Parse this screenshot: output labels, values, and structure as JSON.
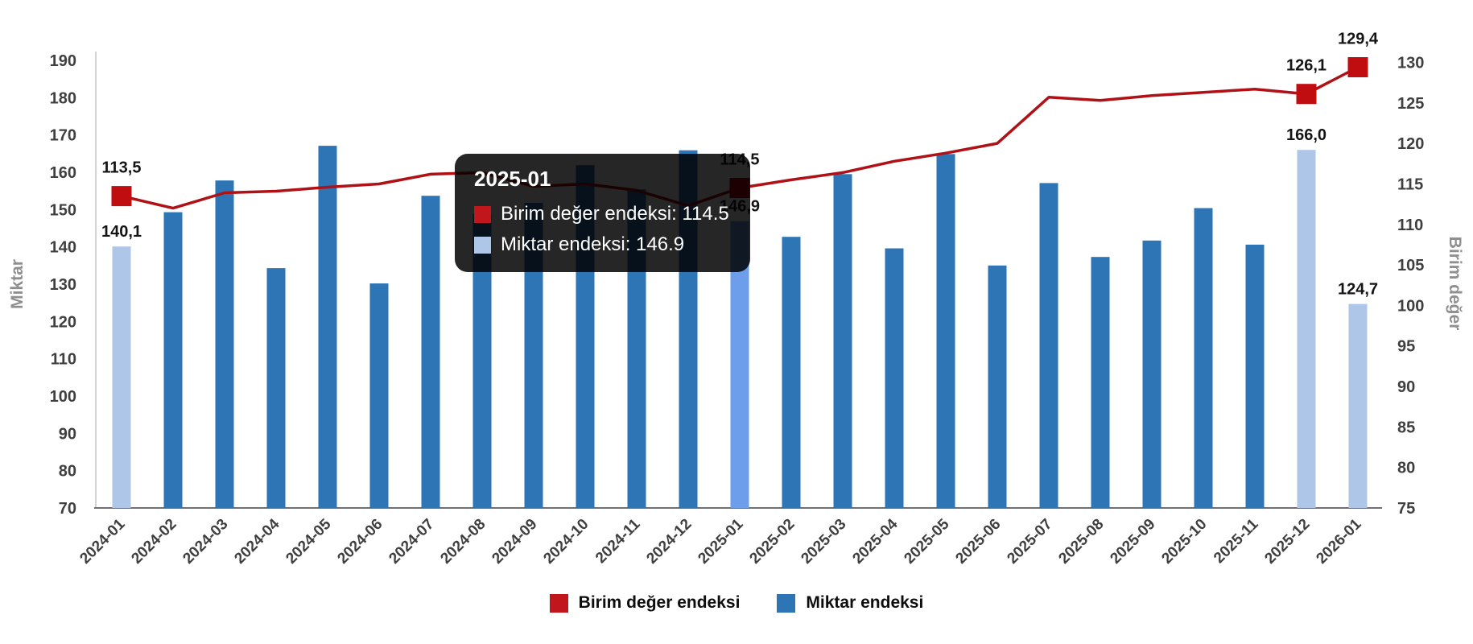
{
  "chart_data": {
    "type": "combo",
    "categories": [
      "2024-01",
      "2024-02",
      "2024-03",
      "2024-04",
      "2024-05",
      "2024-06",
      "2024-07",
      "2024-08",
      "2024-09",
      "2024-10",
      "2024-11",
      "2024-12",
      "2025-01",
      "2025-02",
      "2025-03",
      "2025-04",
      "2025-05",
      "2025-06",
      "2025-07",
      "2025-08",
      "2025-09",
      "2025-10",
      "2025-11",
      "2025-12",
      "2026-01"
    ],
    "series": [
      {
        "name": "Birim değer endeksi",
        "type": "line",
        "axis": "right",
        "color": "#b01116",
        "marker_color": "#c00d10",
        "values": [
          113.5,
          112.0,
          113.9,
          114.1,
          114.6,
          115.0,
          116.2,
          116.4,
          114.7,
          115.0,
          114.2,
          112.3,
          114.5,
          115.5,
          116.4,
          117.8,
          118.8,
          120.0,
          125.7,
          125.3,
          125.9,
          126.3,
          126.7,
          126.1,
          129.4
        ],
        "labels": [
          "113,5",
          null,
          null,
          null,
          null,
          null,
          null,
          null,
          null,
          null,
          null,
          null,
          "114,5",
          null,
          null,
          null,
          null,
          null,
          null,
          null,
          null,
          null,
          null,
          "126,1",
          "129,4"
        ]
      },
      {
        "name": "Miktar endeksi",
        "type": "bar",
        "axis": "left",
        "color": "#2e75b6",
        "pale_color": "#aec6e8",
        "hover_color": "#6d9eeb",
        "values": [
          140.1,
          149.3,
          157.8,
          134.3,
          167.1,
          130.2,
          153.7,
          148.9,
          151.8,
          161.9,
          155.4,
          165.9,
          146.9,
          142.7,
          159.5,
          139.6,
          164.9,
          135.0,
          157.1,
          137.3,
          141.7,
          150.4,
          140.6,
          166.0,
          124.7
        ],
        "labels": [
          "140,1",
          null,
          null,
          null,
          null,
          null,
          null,
          null,
          null,
          null,
          null,
          null,
          "146,9",
          null,
          null,
          null,
          null,
          null,
          null,
          null,
          null,
          null,
          null,
          "166,0",
          "124,7"
        ],
        "special_colors": {
          "0": "#aec6e8",
          "12": "#6d9eeb",
          "23": "#aec6e8",
          "24": "#aec6e8"
        }
      }
    ],
    "left_axis": {
      "title": "Miktar",
      "min": 70,
      "max": 190,
      "step": 10,
      "ticks": [
        70,
        80,
        90,
        100,
        110,
        120,
        130,
        140,
        150,
        160,
        170,
        180,
        190
      ]
    },
    "right_axis": {
      "title": "Birim değer",
      "min": 75,
      "max": 130,
      "step": 5,
      "ticks": [
        75,
        80,
        85,
        90,
        95,
        100,
        105,
        110,
        115,
        120,
        125,
        130
      ]
    },
    "grid": "off",
    "legend_position": "bottom-center"
  },
  "colors": {
    "axis_line": "#d3d3d3",
    "baseline": "#707070",
    "tick_text": "#3f3f3f",
    "axis_title": "#8f8f8f",
    "data_label": "#141414"
  },
  "tooltip": {
    "title": "2025-01",
    "rows": [
      {
        "chip_color": "#c0161c",
        "text": "Birim değer endeksi: 114.5"
      },
      {
        "chip_color": "#aec6e8",
        "text": "Miktar endeksi: 146.9"
      }
    ]
  },
  "legend": {
    "items": [
      {
        "chip_color": "#c0161c",
        "label": "Birim değer endeksi"
      },
      {
        "chip_color": "#2e75b6",
        "label": "Miktar endeksi"
      }
    ]
  },
  "axis_titles": {
    "left": "Miktar",
    "right": "Birim değer"
  }
}
